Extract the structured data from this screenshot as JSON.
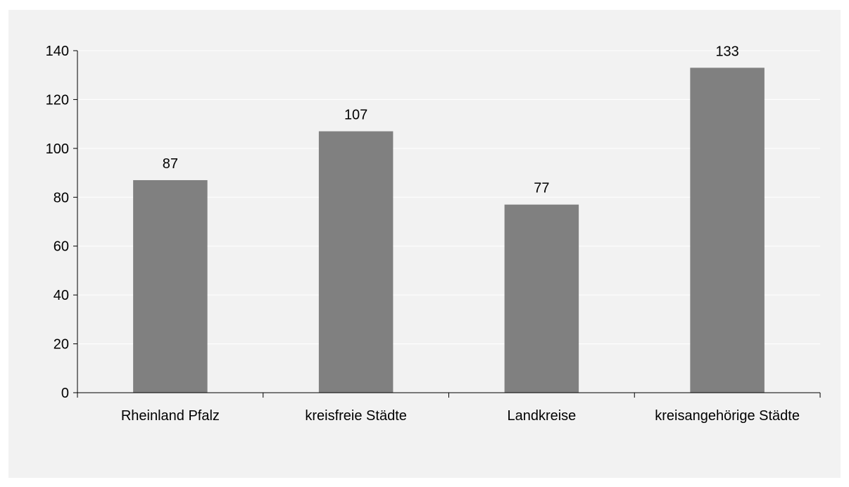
{
  "chart_data": {
    "type": "bar",
    "categories": [
      "Rheinland Pfalz",
      "kreisfreie Städte",
      "Landkreise",
      "kreisangehörige Städte"
    ],
    "values": [
      87,
      107,
      77,
      133
    ],
    "data_labels": [
      "87",
      "107",
      "77",
      "133"
    ],
    "title": "",
    "xlabel": "",
    "ylabel": "",
    "ylim": [
      0,
      140
    ],
    "yticks": [
      0,
      20,
      40,
      60,
      80,
      100,
      120,
      140
    ],
    "ytick_labels": [
      "0",
      "20",
      "40",
      "60",
      "80",
      "100",
      "120",
      "140"
    ],
    "grid": true,
    "legend": "none",
    "bar_color": "#808080",
    "grid_color": "#ffffff",
    "axis_color": "#000000",
    "background_color": "#f2f2f2"
  }
}
